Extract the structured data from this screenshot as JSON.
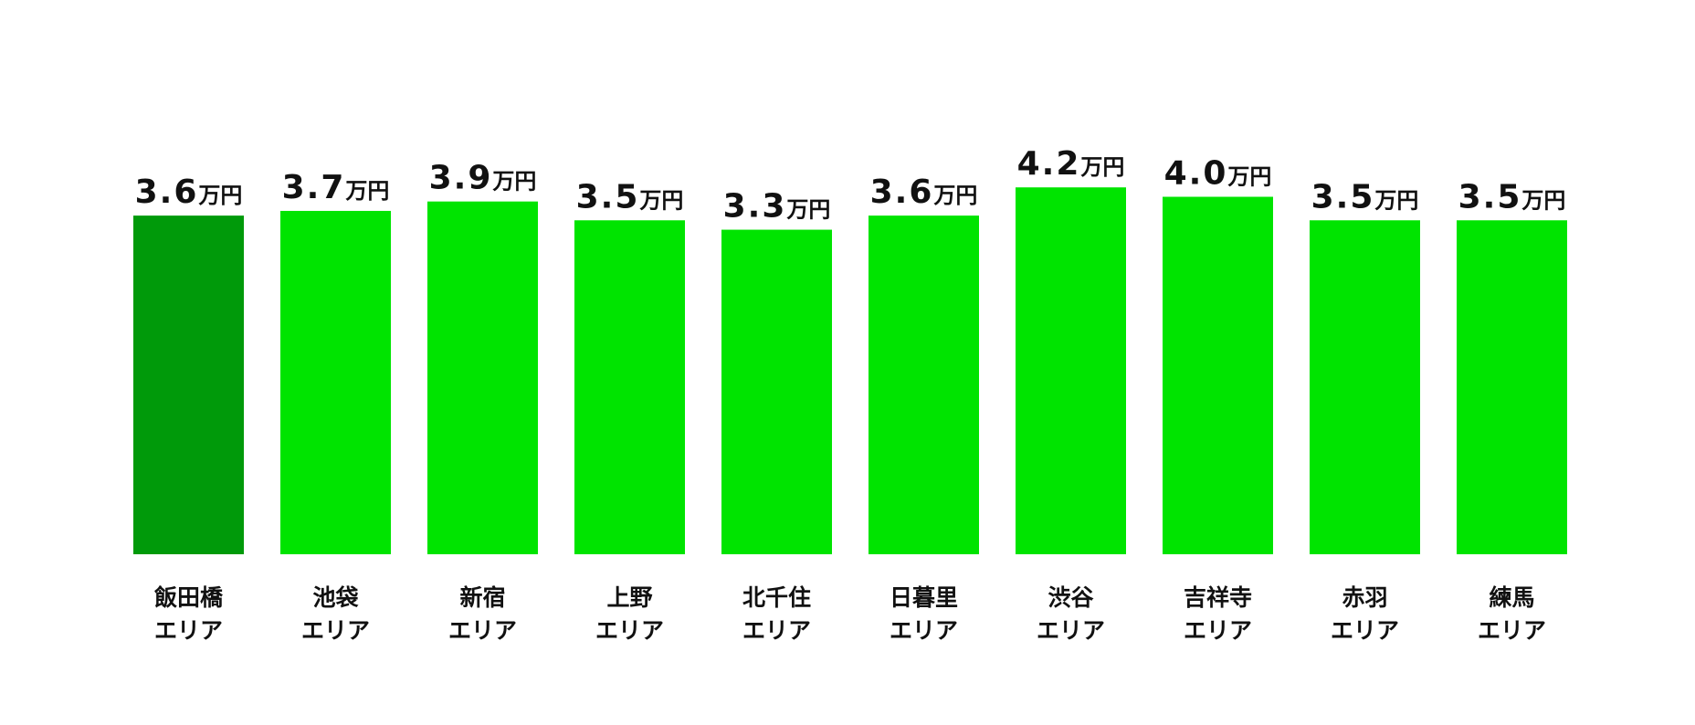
{
  "chart_data": {
    "type": "bar",
    "categories": [
      "飯田橋\nエリア",
      "池袋\nエリア",
      "新宿\nエリア",
      "上野\nエリア",
      "北千住\nエリア",
      "日暮里\nエリア",
      "渋谷\nエリア",
      "吉祥寺\nエリア",
      "赤羽\nエリア",
      "練馬\nエリア"
    ],
    "values": [
      3.6,
      3.7,
      3.9,
      3.5,
      3.3,
      3.6,
      4.2,
      4.0,
      3.5,
      3.5
    ],
    "value_labels": [
      "3.6万円",
      "3.7万円",
      "3.9万円",
      "3.5万円",
      "3.3万円",
      "3.6万円",
      "4.2万円",
      "4.0万円",
      "3.5万円",
      "3.5万円"
    ],
    "colors": [
      "#009a0a",
      "#00e400",
      "#00e400",
      "#00e400",
      "#00e400",
      "#00e400",
      "#00e400",
      "#00e400",
      "#00e400",
      "#00e400"
    ],
    "ylim": [
      -3.6,
      5.0
    ]
  }
}
